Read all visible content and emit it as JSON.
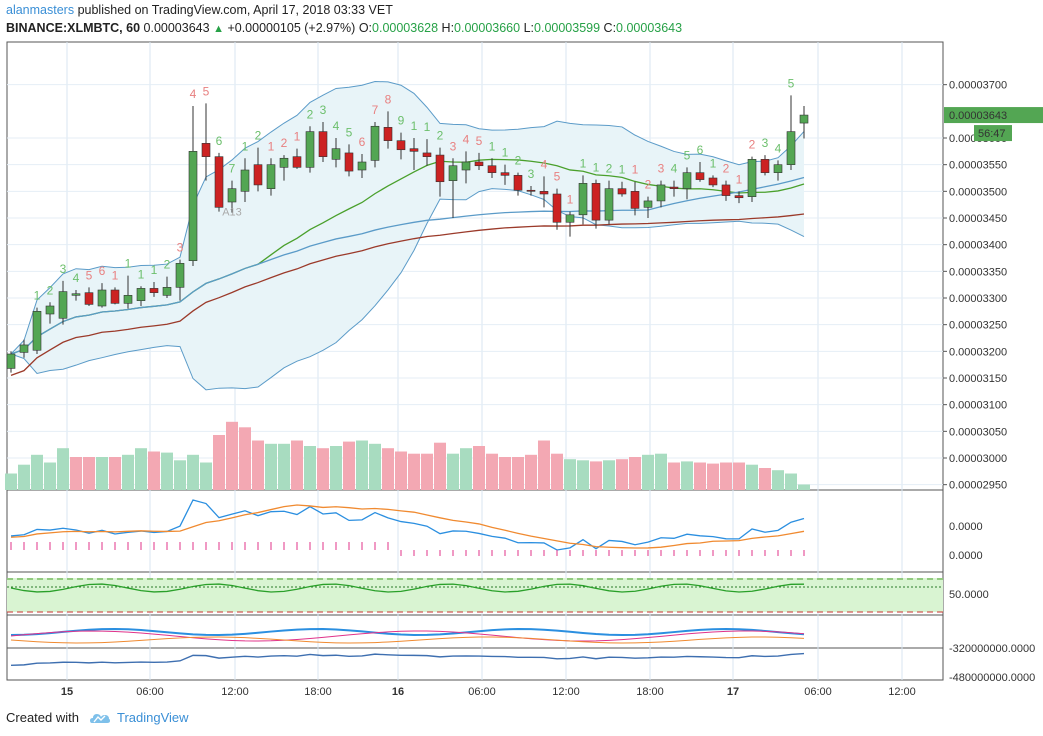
{
  "header": {
    "user": "alanmasters",
    "published_text": "published on TradingView.com, April 17, 2018 03:33 VET",
    "symbol": "BINANCE:XLMBTC, 60",
    "last": "0.00003643",
    "change": "+0.00000105 (+2.97%)",
    "o_label": "O:",
    "o_value": "0.00003628",
    "h_label": "H:",
    "h_value": "0.00003660",
    "l_label": "L:",
    "l_value": "0.00003599",
    "c_label": "C:",
    "c_value": "0.00003643"
  },
  "price_badge": "0.00003643",
  "time_badge": "56:47",
  "footer": {
    "created_with": "Created with",
    "brand": "TradingView"
  },
  "colors": {
    "up": "#53a653",
    "down": "#cc2222",
    "bb": "#5b9bc8",
    "ma_green": "#4aa02c",
    "ma_blue": "#5b9bc8",
    "ma_brown": "#9b3a2a",
    "macd": "#2b8fe0",
    "signal": "#f08a30",
    "rsi": "#2aa02a"
  },
  "chart_data": {
    "type": "candlestick",
    "symbol": "BINANCE:XLMBTC",
    "interval": "60",
    "y_ticks": [
      "0.00003700",
      "0.00003600",
      "0.00003550",
      "0.00003500",
      "0.00003450",
      "0.00003400",
      "0.00003350",
      "0.00003300",
      "0.00003250",
      "0.00003200",
      "0.00003150",
      "0.00003100",
      "0.00003050",
      "0.00003000",
      "0.00002950"
    ],
    "y_range": [
      2.94e-05,
      3.78e-05
    ],
    "x_ticks": [
      "15",
      "06:00",
      "12:00",
      "18:00",
      "16",
      "06:00",
      "12:00",
      "18:00",
      "17",
      "06:00",
      "12:00"
    ],
    "ohlc": [
      [
        3.168e-05,
        3.2e-05,
        3.16e-05,
        3.195e-05
      ],
      [
        3.198e-05,
        3.222e-05,
        3.188e-05,
        3.212e-05
      ],
      [
        3.202e-05,
        3.282e-05,
        3.195e-05,
        3.275e-05
      ],
      [
        3.27e-05,
        3.292e-05,
        3.252e-05,
        3.285e-05
      ],
      [
        3.262e-05,
        3.332e-05,
        3.25e-05,
        3.312e-05
      ],
      [
        3.305e-05,
        3.315e-05,
        3.295e-05,
        3.308e-05
      ],
      [
        3.31e-05,
        3.32e-05,
        3.285e-05,
        3.288e-05
      ],
      [
        3.285e-05,
        3.328e-05,
        3.282e-05,
        3.315e-05
      ],
      [
        3.315e-05,
        3.32e-05,
        3.288e-05,
        3.29e-05
      ],
      [
        3.29e-05,
        3.342e-05,
        3.28e-05,
        3.305e-05
      ],
      [
        3.295e-05,
        3.322e-05,
        3.285e-05,
        3.318e-05
      ],
      [
        3.318e-05,
        3.33e-05,
        3.302e-05,
        3.31e-05
      ],
      [
        3.305e-05,
        3.34e-05,
        3.3e-05,
        3.32e-05
      ],
      [
        3.32e-05,
        3.372e-05,
        3.295e-05,
        3.365e-05
      ],
      [
        3.37e-05,
        3.66e-05,
        3.36e-05,
        3.575e-05
      ],
      [
        3.59e-05,
        3.665e-05,
        3.52e-05,
        3.565e-05
      ],
      [
        3.565e-05,
        3.572e-05,
        3.462e-05,
        3.47e-05
      ],
      [
        3.48e-05,
        3.52e-05,
        3.46e-05,
        3.505e-05
      ],
      [
        3.5e-05,
        3.562e-05,
        3.48e-05,
        3.54e-05
      ],
      [
        3.55e-05,
        3.582e-05,
        3.5e-05,
        3.512e-05
      ],
      [
        3.505e-05,
        3.562e-05,
        3.492e-05,
        3.55e-05
      ],
      [
        3.545e-05,
        3.568e-05,
        3.52e-05,
        3.562e-05
      ],
      [
        3.565e-05,
        3.58e-05,
        3.542e-05,
        3.545e-05
      ],
      [
        3.545e-05,
        3.622e-05,
        3.535e-05,
        3.612e-05
      ],
      [
        3.612e-05,
        3.63e-05,
        3.555e-05,
        3.565e-05
      ],
      [
        3.56e-05,
        3.6e-05,
        3.545e-05,
        3.58e-05
      ],
      [
        3.572e-05,
        3.588e-05,
        3.528e-05,
        3.538e-05
      ],
      [
        3.54e-05,
        3.57e-05,
        3.525e-05,
        3.555e-05
      ],
      [
        3.558e-05,
        3.63e-05,
        3.545e-05,
        3.622e-05
      ],
      [
        3.62e-05,
        3.65e-05,
        3.58e-05,
        3.595e-05
      ],
      [
        3.595e-05,
        3.61e-05,
        3.56e-05,
        3.578e-05
      ],
      [
        3.58e-05,
        3.6e-05,
        3.54e-05,
        3.575e-05
      ],
      [
        3.572e-05,
        3.598e-05,
        3.548e-05,
        3.565e-05
      ],
      [
        3.568e-05,
        3.582e-05,
        3.49e-05,
        3.518e-05
      ],
      [
        3.52e-05,
        3.562e-05,
        3.45e-05,
        3.548e-05
      ],
      [
        3.54e-05,
        3.575e-05,
        3.515e-05,
        3.555e-05
      ],
      [
        3.555e-05,
        3.572e-05,
        3.54e-05,
        3.548e-05
      ],
      [
        3.548e-05,
        3.562e-05,
        3.525e-05,
        3.535e-05
      ],
      [
        3.535e-05,
        3.55e-05,
        3.512e-05,
        3.53e-05
      ],
      [
        3.53e-05,
        3.535e-05,
        3.492e-05,
        3.502e-05
      ],
      [
        3.502e-05,
        3.51e-05,
        3.492e-05,
        3.5e-05
      ],
      [
        3.5e-05,
        3.528e-05,
        3.47e-05,
        3.495e-05
      ],
      [
        3.495e-05,
        3.505e-05,
        3.428e-05,
        3.442e-05
      ],
      [
        3.442e-05,
        3.462e-05,
        3.415e-05,
        3.456e-05
      ],
      [
        3.456e-05,
        3.53e-05,
        3.438e-05,
        3.515e-05
      ],
      [
        3.515e-05,
        3.522e-05,
        3.43e-05,
        3.446e-05
      ],
      [
        3.446e-05,
        3.52e-05,
        3.438e-05,
        3.505e-05
      ],
      [
        3.505e-05,
        3.518e-05,
        3.49e-05,
        3.495e-05
      ],
      [
        3.5e-05,
        3.518e-05,
        3.455e-05,
        3.468e-05
      ],
      [
        3.47e-05,
        3.49e-05,
        3.45e-05,
        3.482e-05
      ],
      [
        3.482e-05,
        3.52e-05,
        3.47e-05,
        3.512e-05
      ],
      [
        3.508e-05,
        3.52e-05,
        3.49e-05,
        3.505e-05
      ],
      [
        3.505e-05,
        3.545e-05,
        3.485e-05,
        3.535e-05
      ],
      [
        3.535e-05,
        3.555e-05,
        3.518e-05,
        3.522e-05
      ],
      [
        3.525e-05,
        3.53e-05,
        3.508e-05,
        3.512e-05
      ],
      [
        3.512e-05,
        3.52e-05,
        3.482e-05,
        3.492e-05
      ],
      [
        3.492e-05,
        3.5e-05,
        3.478e-05,
        3.488e-05
      ],
      [
        3.49e-05,
        3.565e-05,
        3.48e-05,
        3.56e-05
      ],
      [
        3.56e-05,
        3.568e-05,
        3.53e-05,
        3.535e-05
      ],
      [
        3.535e-05,
        3.558e-05,
        3.52e-05,
        3.55e-05
      ],
      [
        3.55e-05,
        3.68e-05,
        3.54e-05,
        3.612e-05
      ],
      [
        3.628e-05,
        3.66e-05,
        3.599e-05,
        3.643e-05
      ]
    ],
    "volume": [
      0.15,
      0.23,
      0.32,
      0.25,
      0.38,
      0.3,
      0.3,
      0.3,
      0.3,
      0.32,
      0.38,
      0.35,
      0.34,
      0.27,
      0.32,
      0.25,
      0.5,
      0.62,
      0.57,
      0.45,
      0.42,
      0.42,
      0.45,
      0.4,
      0.38,
      0.4,
      0.44,
      0.45,
      0.42,
      0.38,
      0.35,
      0.33,
      0.33,
      0.43,
      0.33,
      0.38,
      0.4,
      0.33,
      0.3,
      0.3,
      0.32,
      0.45,
      0.33,
      0.28,
      0.27,
      0.26,
      0.27,
      0.28,
      0.3,
      0.32,
      0.33,
      0.25,
      0.26,
      0.25,
      0.24,
      0.25,
      0.25,
      0.23,
      0.2,
      0.18,
      0.15,
      0.05
    ],
    "volume_up": [
      true,
      true,
      true,
      true,
      true,
      false,
      false,
      true,
      false,
      true,
      true,
      false,
      true,
      true,
      true,
      true,
      false,
      false,
      false,
      false,
      true,
      true,
      false,
      true,
      false,
      true,
      false,
      true,
      true,
      false,
      false,
      false,
      false,
      false,
      true,
      true,
      false,
      false,
      false,
      false,
      false,
      false,
      false,
      true,
      true,
      false,
      true,
      false,
      false,
      true,
      true,
      false,
      true,
      false,
      false,
      false,
      false,
      true,
      false,
      true,
      true,
      true
    ],
    "volume_ylabel": "",
    "td_sequential": [
      "1",
      "2",
      "3",
      "4",
      "5",
      "6",
      "1",
      "1",
      "1",
      "1",
      "2",
      "3",
      "4",
      "5",
      "6",
      "7",
      "1",
      "2",
      "1",
      "2",
      "1",
      "2",
      "3",
      "4",
      "5",
      "6",
      "7",
      "8",
      "9",
      "1",
      "1",
      "2",
      "3",
      "4",
      "5",
      "1",
      "1",
      "2",
      "3",
      "4",
      "5",
      "1",
      "1",
      "1",
      "2",
      "1",
      "1",
      "2",
      "3",
      "4",
      "5",
      "6",
      "1",
      "2",
      "1",
      "2",
      "3",
      "4",
      "5"
    ],
    "macd_pane_ticks": [
      "0.0000",
      "0.0000"
    ],
    "rsi_pane_ticks": [
      "50.0000"
    ],
    "obv_pane_ticks": [
      "-320000000.0000",
      "-480000000.0000"
    ],
    "annotations": [
      "A13"
    ]
  }
}
